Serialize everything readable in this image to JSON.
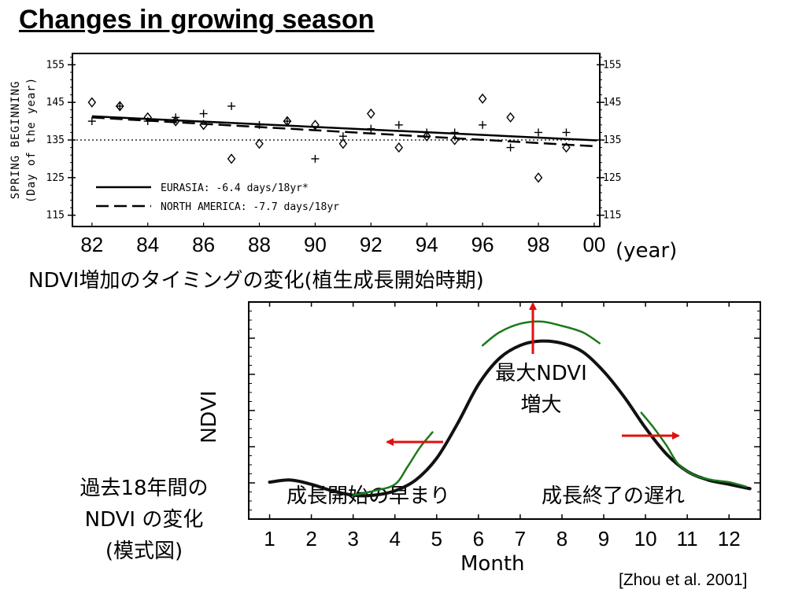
{
  "page": {
    "title": "Changes in growing season",
    "chart1_caption": "NDVI増加のタイミングの変化(植生成長開始時期)",
    "side_note_line1": "過去18年間の",
    "side_note_line2": "NDVI の変化",
    "side_note_line3": "(模式図)",
    "citation": "[Zhou et al. 2001]"
  },
  "chart_data": [
    {
      "type": "scatter",
      "ylabel_line1": "SPRING BEGINNING",
      "ylabel_line2": "(Day of the year)",
      "xunit": "(year)",
      "xtick_labels": [
        "82",
        "84",
        "86",
        "88",
        "90",
        "92",
        "94",
        "96",
        "98",
        "00"
      ],
      "yticks": [
        115,
        125,
        135,
        145,
        155
      ],
      "ylim": [
        112,
        158
      ],
      "xlim": [
        1981.3,
        2000.2
      ],
      "reference_line_y": 135,
      "series": [
        {
          "name": "EURASIA: -6.4 days/18yr*",
          "marker": "diamond",
          "x": [
            1982,
            1983,
            1984,
            1985,
            1986,
            1987,
            1988,
            1989,
            1990,
            1991,
            1992,
            1993,
            1994,
            1995,
            1996,
            1997,
            1998,
            1999
          ],
          "y": [
            145,
            144,
            141,
            140,
            139,
            130,
            134,
            140,
            139,
            134,
            142,
            133,
            136,
            135,
            146,
            141,
            125,
            133
          ],
          "trend": [
            141.3,
            134.9
          ]
        },
        {
          "name": "NORTH AMERICA: -7.7 days/18yr",
          "marker": "plus",
          "x": [
            1982,
            1983,
            1984,
            1985,
            1986,
            1987,
            1988,
            1989,
            1990,
            1991,
            1992,
            1993,
            1994,
            1995,
            1996,
            1997,
            1998,
            1999
          ],
          "y": [
            140,
            144,
            140,
            141,
            142,
            144,
            139,
            140,
            130,
            136,
            138,
            139,
            137,
            137,
            139,
            133,
            137,
            137
          ],
          "trend": [
            141.0,
            133.3
          ]
        }
      ]
    },
    {
      "type": "line",
      "ylabel": "NDVI",
      "xlabel": "Month",
      "x": [
        1,
        2,
        3,
        4,
        5,
        6,
        7,
        8,
        9,
        10,
        11,
        12
      ],
      "ylim": [
        0,
        1
      ],
      "series": [
        {
          "name": "",
          "color": "#111111",
          "x": [
            1,
            1.5,
            2,
            2.5,
            3,
            3.5,
            4,
            4.5,
            5,
            5.5,
            6,
            6.5,
            7,
            7.5,
            8,
            8.5,
            9,
            9.5,
            10,
            10.5,
            11,
            11.5,
            12,
            12.5
          ],
          "y": [
            0.17,
            0.18,
            0.16,
            0.13,
            0.11,
            0.11,
            0.13,
            0.18,
            0.28,
            0.44,
            0.62,
            0.74,
            0.8,
            0.82,
            0.81,
            0.77,
            0.68,
            0.56,
            0.42,
            0.3,
            0.22,
            0.18,
            0.16,
            0.14
          ]
        },
        {
          "name": "",
          "color": "#1a7a1a",
          "x": [
            3,
            3.5,
            4,
            4.3,
            4.6,
            4.9
          ],
          "y": [
            0.11,
            0.13,
            0.16,
            0.24,
            0.33,
            0.4
          ]
        },
        {
          "name": "",
          "color": "#1a7a1a",
          "x": [
            6.1,
            6.5,
            7,
            7.5,
            8,
            8.5,
            8.9
          ],
          "y": [
            0.8,
            0.86,
            0.9,
            0.91,
            0.89,
            0.86,
            0.81
          ]
        },
        {
          "name": "",
          "color": "#1a7a1a",
          "x": [
            9.9,
            10.2,
            10.5,
            10.8,
            11.2,
            11.6,
            12,
            12.4
          ],
          "y": [
            0.49,
            0.42,
            0.34,
            0.25,
            0.2,
            0.18,
            0.17,
            0.15
          ]
        }
      ],
      "annotations": {
        "max_line1": "最大NDVI",
        "max_line2": "増大",
        "early": "成長開始の早まり",
        "late": "成長終了の遅れ"
      },
      "arrows_color": "#e01010"
    }
  ]
}
